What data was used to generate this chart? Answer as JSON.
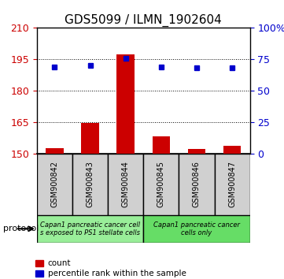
{
  "title": "GDS5099 / ILMN_1902604",
  "samples": [
    "GSM900842",
    "GSM900843",
    "GSM900844",
    "GSM900845",
    "GSM900846",
    "GSM900847"
  ],
  "counts": [
    152.5,
    164.5,
    197.5,
    158.0,
    152.0,
    153.5
  ],
  "percentile_ranks_left": [
    191.5,
    192.0,
    195.5,
    191.5,
    191.0,
    191.0
  ],
  "left_ylim": [
    150,
    210
  ],
  "left_yticks": [
    150,
    165,
    180,
    195,
    210
  ],
  "right_ylim": [
    0,
    100
  ],
  "right_yticks": [
    0,
    25,
    50,
    75,
    100
  ],
  "right_yticklabels": [
    "0",
    "25",
    "50",
    "75",
    "100%"
  ],
  "bar_color": "#cc0000",
  "dot_color": "#0000cc",
  "group1_label": "Capan1 pancreatic cancer cell\ns exposed to PS1 stellate cells",
  "group2_label": "Capan1 pancreatic cancer\ncells only",
  "group1_indices": [
    0,
    1,
    2
  ],
  "group2_indices": [
    3,
    4,
    5
  ],
  "sample_box_color": "#d0d0d0",
  "group1_color": "#99ee99",
  "group2_color": "#66dd66",
  "protocol_label": "protocol",
  "legend_count_label": "count",
  "legend_pct_label": "percentile rank within the sample",
  "tick_label_color_left": "#cc0000",
  "tick_label_color_right": "#0000cc",
  "bar_width": 0.5,
  "dot_size": 5
}
